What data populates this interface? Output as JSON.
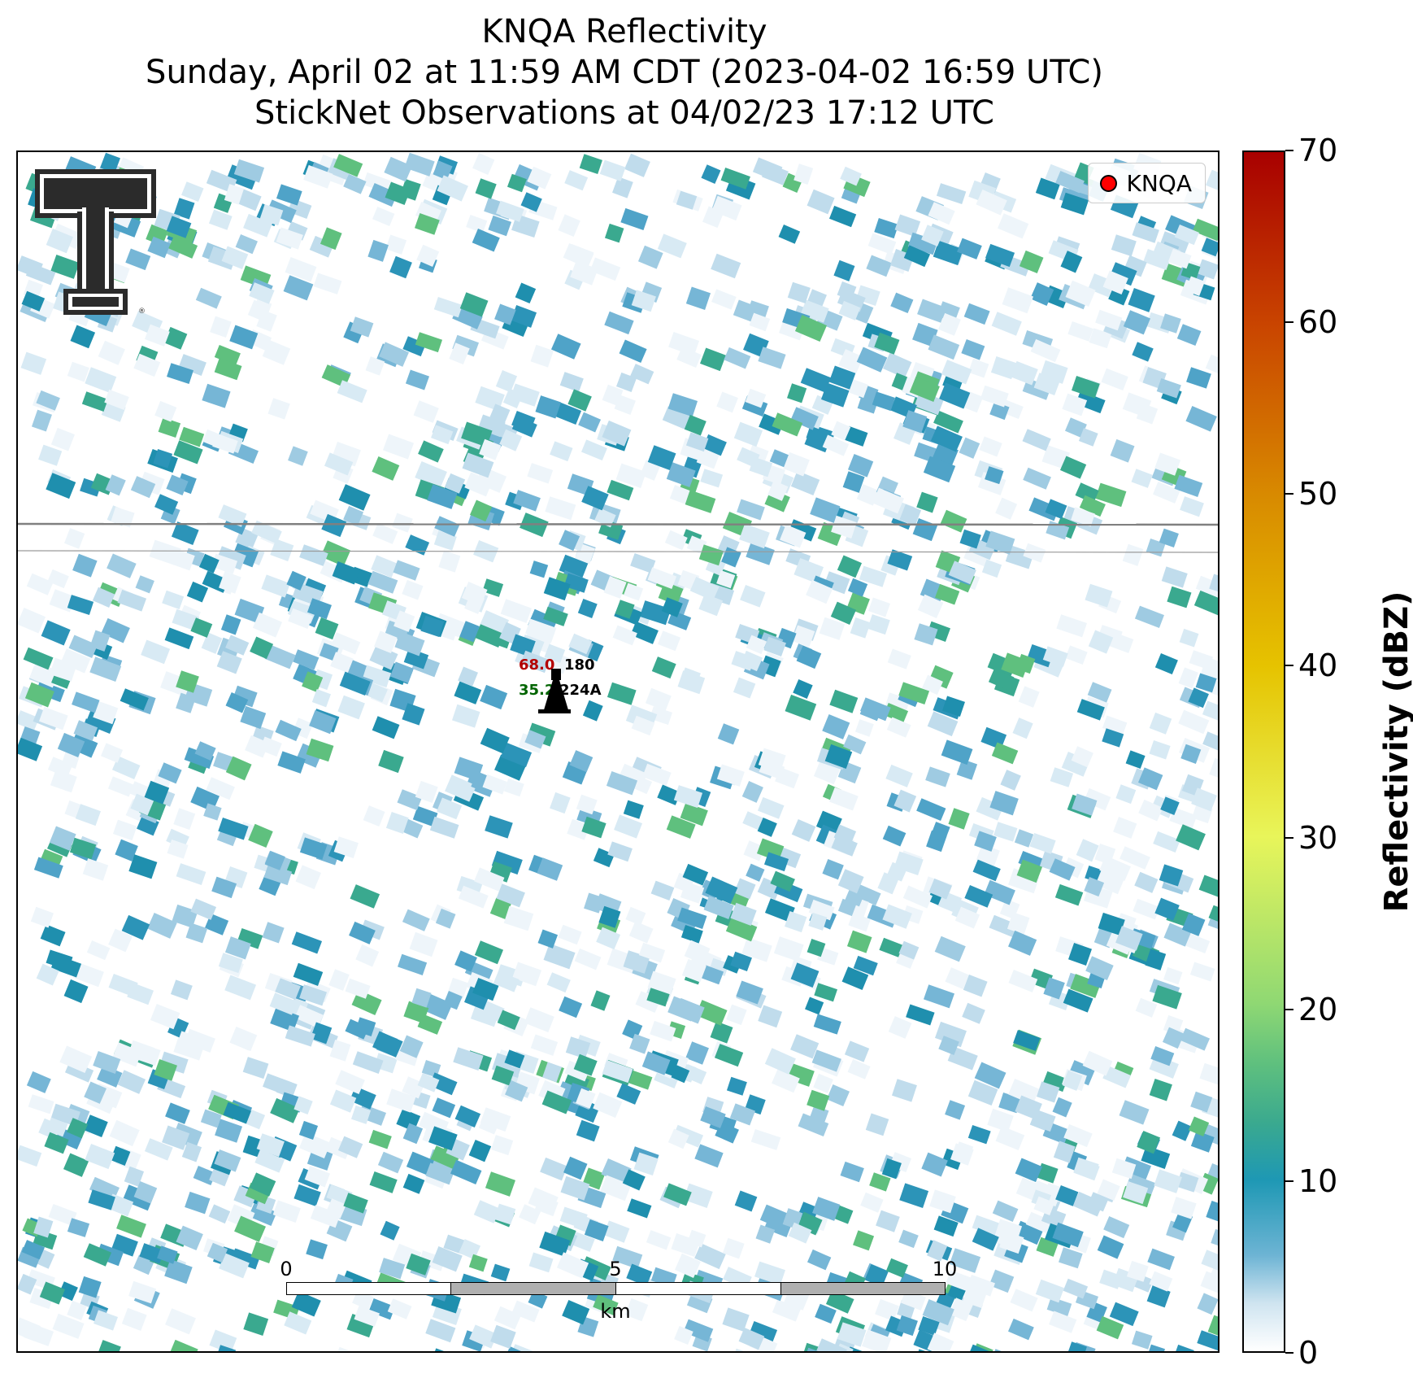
{
  "title": {
    "line1": "KNQA Reflectivity",
    "line2": "Sunday, April 02 at 11:59 AM CDT (2023-04-02 16:59 UTC)",
    "line3": "StickNet Observations at 04/02/23 17:12 UTC"
  },
  "legend": {
    "label": "KNQA",
    "marker_color": "#ff0000"
  },
  "station": {
    "id": "224A",
    "temperature": "68.0",
    "dewpoint": "35.2",
    "wind_direction": "180",
    "temperature_color": "#b30000",
    "dewpoint_color": "#006400"
  },
  "scalebar": {
    "ticks": [
      "0",
      "5",
      "10"
    ],
    "unit": "km"
  },
  "colorbar": {
    "label": "Reflectivity (dBZ)",
    "ticks": [
      "0",
      "10",
      "20",
      "30",
      "40",
      "50",
      "60",
      "70"
    ],
    "range": [
      0,
      70
    ],
    "colors": {
      "low": "#ffffff",
      "mid": "#1e98b4",
      "high": "#a80000"
    }
  },
  "logo": {
    "name": "Texas Tech double-T logo"
  }
}
